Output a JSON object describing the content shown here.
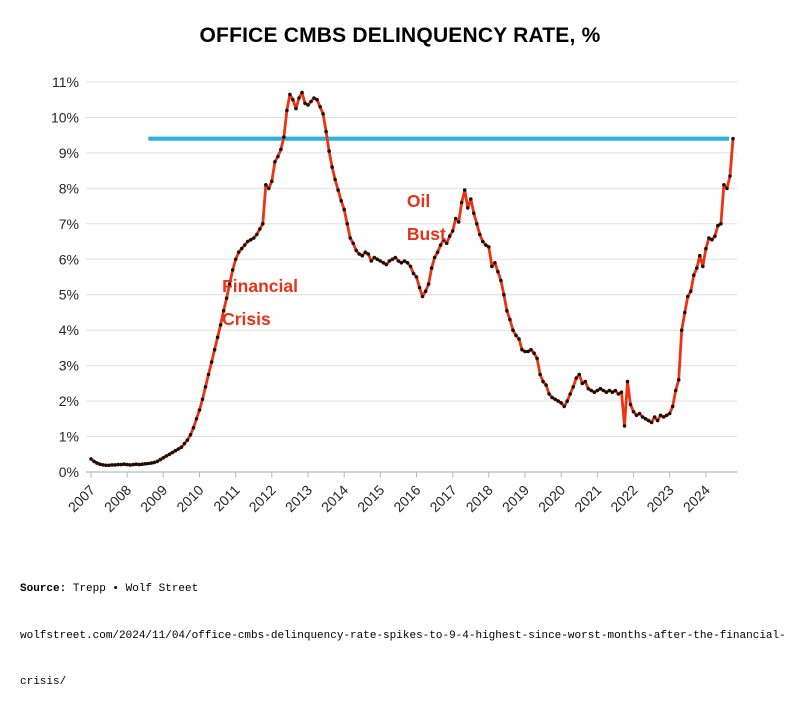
{
  "title": "OFFICE CMBS DELINQUENCY RATE, %",
  "source": {
    "label": "Source:",
    "credit": " Trepp • Wolf Street",
    "url_line1": "wolfstreet.com/2024/11/04/office-cmbs-delinquency-rate-spikes-to-9-4-highest-since-worst-months-after-the-financial-",
    "url_line2": "crisis/"
  },
  "chart_data": {
    "type": "line",
    "title": "OFFICE CMBS DELINQUENCY RATE, %",
    "unit": "%",
    "frequency": "monthly",
    "x_start": "2007-01",
    "x_end": "2024-10",
    "ylim": [
      0,
      11
    ],
    "grid": "horizontal",
    "legend": "none",
    "ytick_labels": [
      "0%",
      "1%",
      "2%",
      "3%",
      "4%",
      "5%",
      "6%",
      "7%",
      "8%",
      "9%",
      "10%",
      "11%"
    ],
    "xtick_labels": [
      "2007",
      "2008",
      "2009",
      "2010",
      "2011",
      "2012",
      "2013",
      "2014",
      "2015",
      "2016",
      "2017",
      "2018",
      "2019",
      "2020",
      "2021",
      "2022",
      "2023",
      "2024"
    ],
    "series": [
      {
        "name": "Office CMBS delinquency rate",
        "color": "#ee3312",
        "marker_color": "#1e1008",
        "values": [
          0.37,
          0.3,
          0.25,
          0.22,
          0.2,
          0.19,
          0.19,
          0.2,
          0.2,
          0.21,
          0.21,
          0.22,
          0.21,
          0.2,
          0.21,
          0.22,
          0.21,
          0.22,
          0.23,
          0.24,
          0.25,
          0.27,
          0.3,
          0.35,
          0.4,
          0.45,
          0.5,
          0.55,
          0.6,
          0.65,
          0.7,
          0.8,
          0.9,
          1.05,
          1.25,
          1.5,
          1.75,
          2.05,
          2.4,
          2.75,
          3.1,
          3.45,
          3.8,
          4.15,
          4.55,
          4.9,
          5.3,
          5.7,
          6.0,
          6.2,
          6.3,
          6.4,
          6.5,
          6.55,
          6.6,
          6.7,
          6.85,
          7.0,
          8.1,
          8.0,
          8.2,
          8.75,
          8.9,
          9.1,
          9.45,
          10.2,
          10.65,
          10.5,
          10.25,
          10.55,
          10.7,
          10.4,
          10.35,
          10.45,
          10.55,
          10.5,
          10.3,
          10.1,
          9.6,
          9.05,
          8.6,
          8.25,
          7.95,
          7.65,
          7.4,
          7.0,
          6.6,
          6.45,
          6.25,
          6.15,
          6.1,
          6.2,
          6.15,
          5.95,
          6.05,
          6.0,
          5.95,
          5.9,
          5.85,
          5.95,
          6.0,
          6.05,
          5.95,
          5.9,
          5.95,
          5.9,
          5.8,
          5.6,
          5.5,
          5.2,
          4.95,
          5.1,
          5.3,
          5.75,
          6.05,
          6.2,
          6.4,
          6.55,
          6.45,
          6.65,
          6.8,
          7.15,
          7.05,
          7.6,
          7.95,
          7.45,
          7.7,
          7.3,
          7.0,
          6.7,
          6.5,
          6.4,
          6.35,
          5.8,
          5.9,
          5.65,
          5.4,
          5.0,
          4.55,
          4.3,
          4.0,
          3.85,
          3.75,
          3.45,
          3.4,
          3.4,
          3.45,
          3.35,
          3.2,
          2.75,
          2.55,
          2.45,
          2.2,
          2.1,
          2.05,
          2.0,
          1.95,
          1.85,
          2.0,
          2.2,
          2.4,
          2.65,
          2.75,
          2.5,
          2.55,
          2.35,
          2.3,
          2.25,
          2.3,
          2.35,
          2.3,
          2.25,
          2.3,
          2.25,
          2.3,
          2.2,
          2.25,
          1.3,
          2.55,
          1.9,
          1.7,
          1.6,
          1.65,
          1.55,
          1.5,
          1.45,
          1.4,
          1.55,
          1.45,
          1.6,
          1.55,
          1.6,
          1.65,
          1.85,
          2.3,
          2.6,
          4.0,
          4.5,
          4.95,
          5.1,
          5.55,
          5.75,
          6.1,
          5.8,
          6.3,
          6.6,
          6.55,
          6.65,
          6.95,
          7.0,
          8.1,
          8.0,
          8.35,
          9.4
        ]
      }
    ],
    "reference_line": {
      "value": 9.4,
      "color": "#2fb3de",
      "start_month_index": 19,
      "end_month_index": 211.7
    },
    "annotations": [
      {
        "id": "financial-crisis",
        "lines": [
          "Financial",
          "Crisis"
        ],
        "color": "#e8321a",
        "month_index": 43.5,
        "value": 5.08
      },
      {
        "id": "oil-bust",
        "lines": [
          "Oil",
          "Bust"
        ],
        "color": "#e8321a",
        "month_index": 104.8,
        "value": 7.47
      }
    ]
  }
}
